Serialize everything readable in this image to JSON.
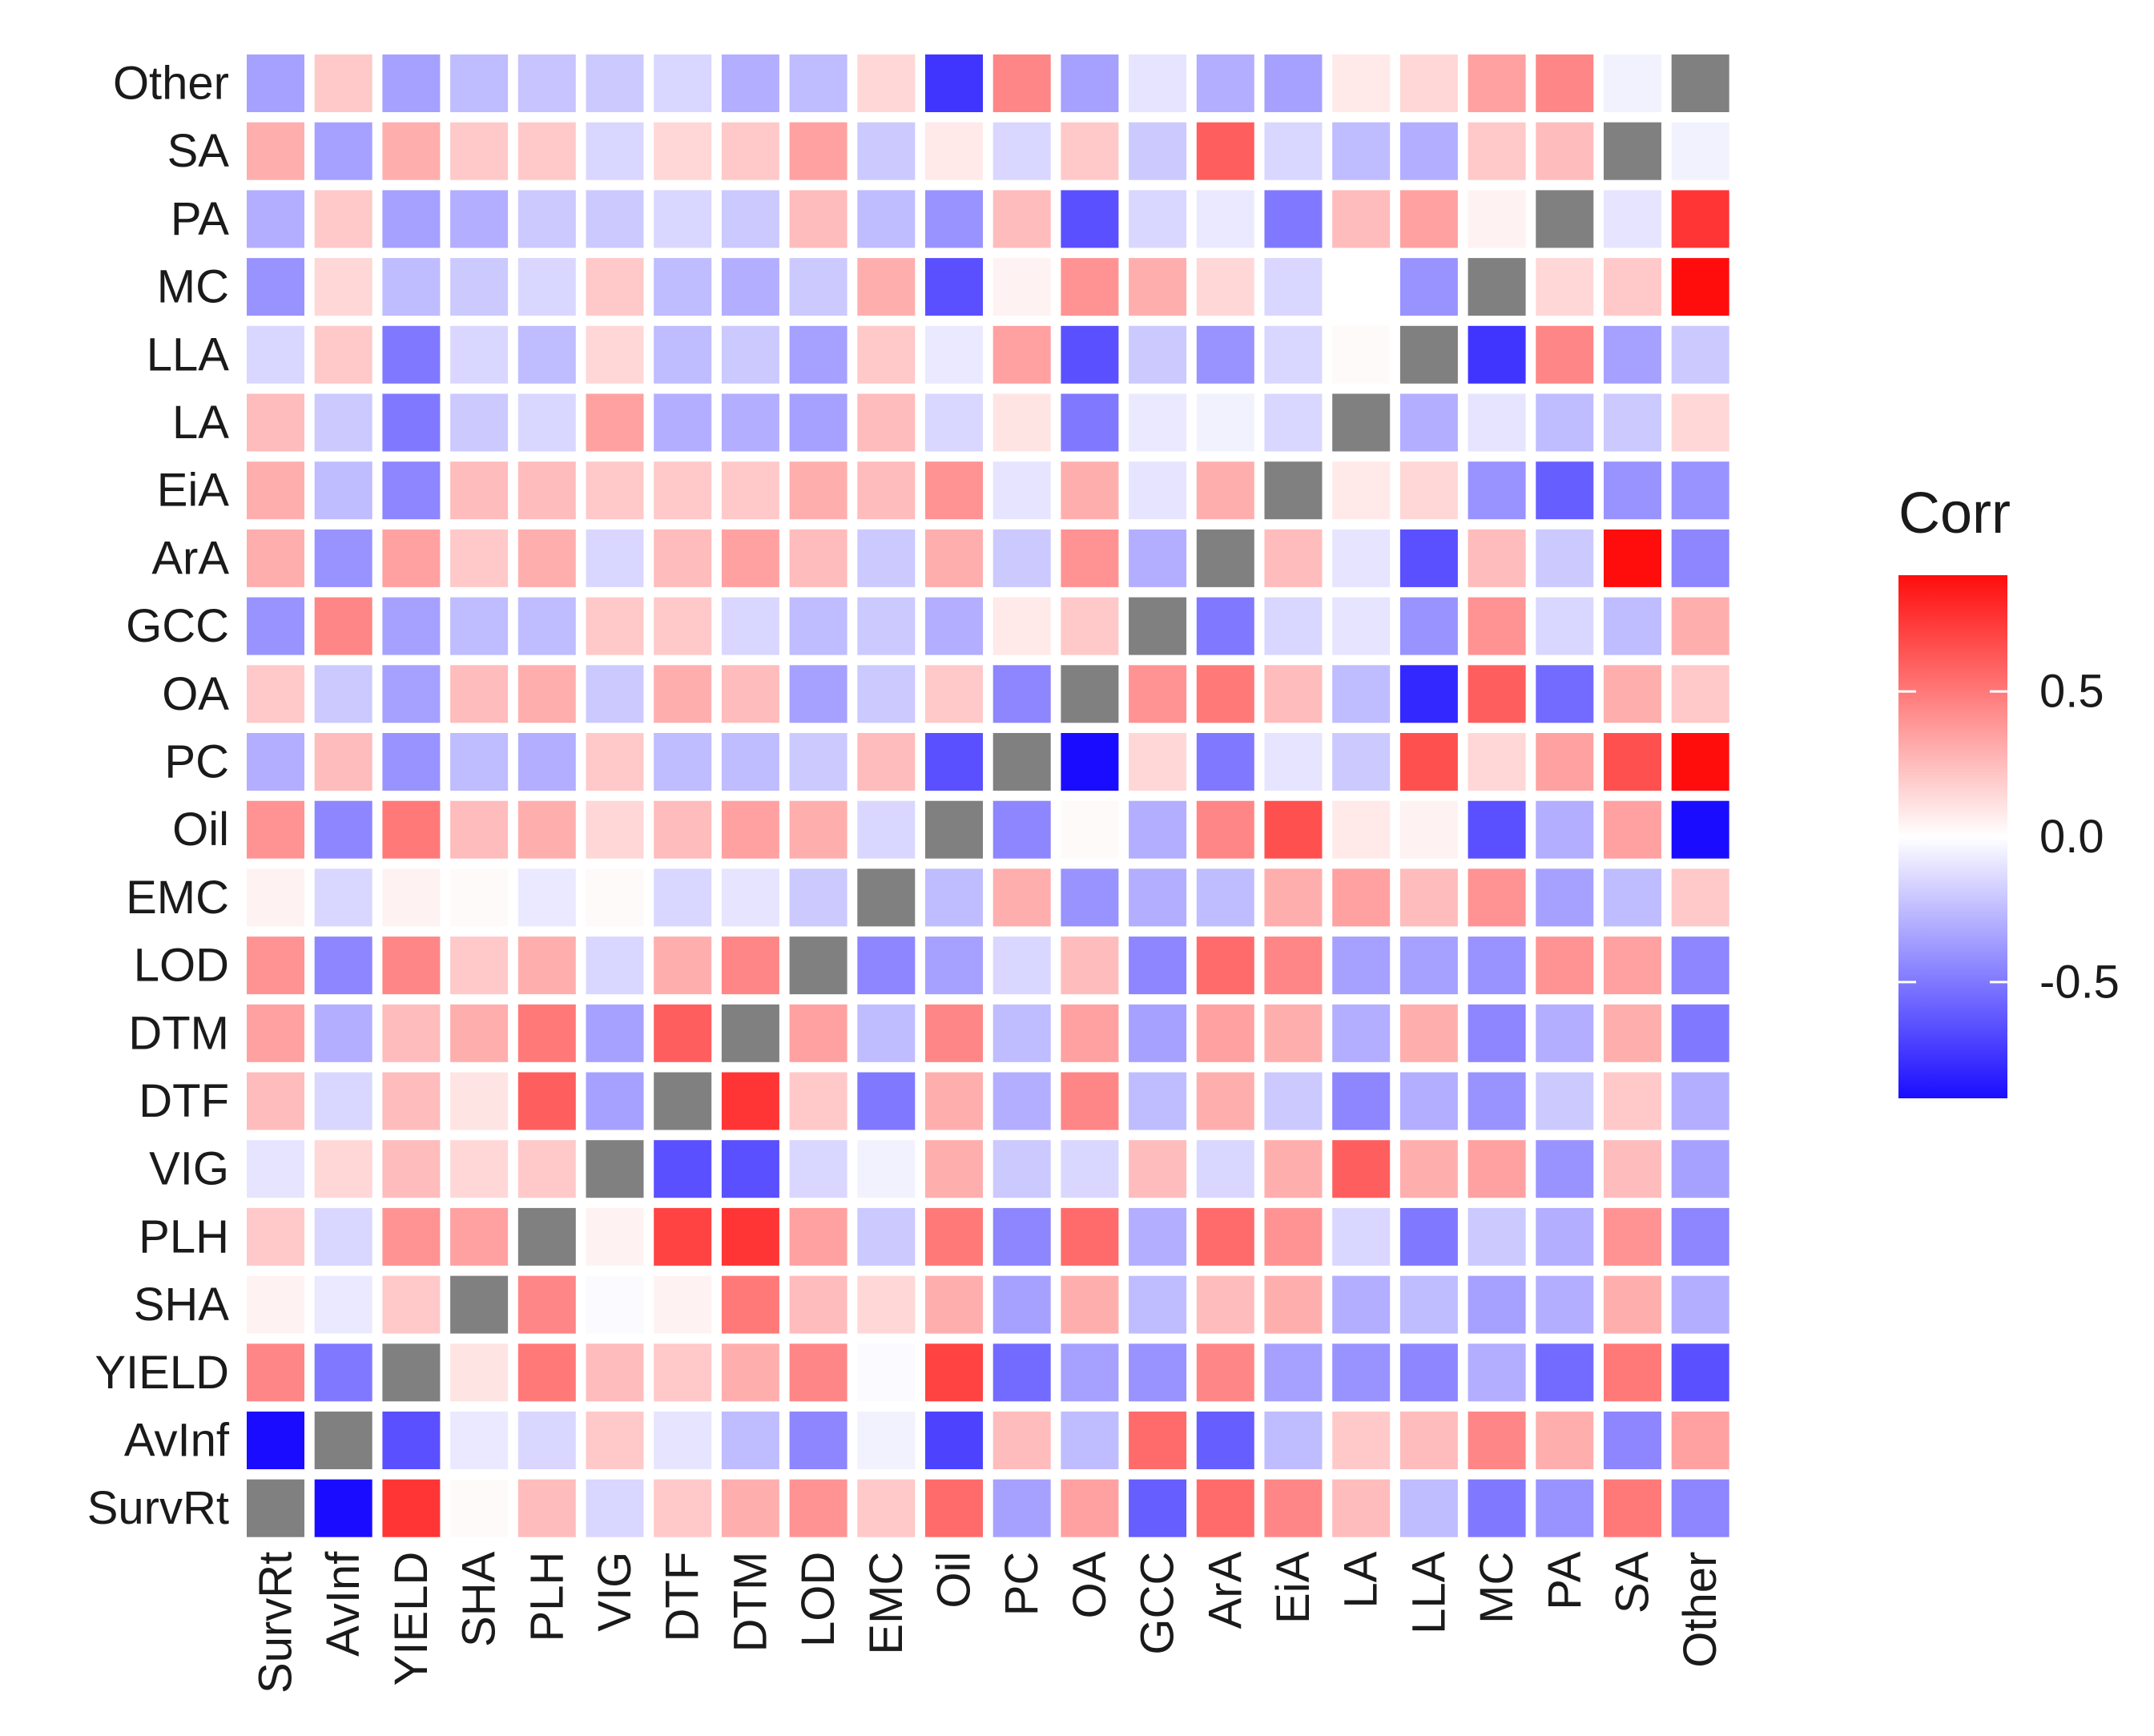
{
  "chart_data": {
    "type": "heatmap",
    "variables": [
      "SurvRt",
      "AvInf",
      "YIELD",
      "SHA",
      "PLH",
      "VIG",
      "DTF",
      "DTM",
      "LOD",
      "EMC",
      "Oil",
      "PC",
      "OA",
      "GCC",
      "ArA",
      "EiA",
      "LA",
      "LLA",
      "MC",
      "PA",
      "SA",
      "Other"
    ],
    "rows_top_to_bottom": [
      "Other",
      "SA",
      "PA",
      "MC",
      "LLA",
      "LA",
      "EiA",
      "ArA",
      "GCC",
      "OA",
      "PC",
      "Oil",
      "EMC",
      "LOD",
      "DTM",
      "DTF",
      "VIG",
      "PLH",
      "SHA",
      "YIELD",
      "AvInf",
      "SurvRt"
    ],
    "values": [
      [
        -0.35,
        0.2,
        -0.35,
        -0.25,
        -0.22,
        -0.2,
        -0.15,
        -0.3,
        -0.25,
        0.15,
        -0.75,
        0.45,
        -0.35,
        -0.1,
        -0.3,
        -0.35,
        0.08,
        0.15,
        0.35,
        0.45,
        -0.05,
        null
      ],
      [
        0.3,
        -0.35,
        0.3,
        0.2,
        0.2,
        -0.15,
        0.15,
        0.2,
        0.35,
        -0.2,
        0.08,
        -0.15,
        0.2,
        -0.2,
        0.6,
        -0.15,
        -0.25,
        -0.3,
        0.2,
        0.25,
        null,
        -0.05
      ],
      [
        -0.3,
        0.2,
        -0.35,
        -0.3,
        -0.2,
        -0.2,
        -0.15,
        -0.2,
        0.25,
        -0.25,
        -0.4,
        0.25,
        -0.65,
        -0.15,
        -0.08,
        -0.5,
        0.25,
        0.35,
        0.05,
        null,
        -0.1,
        0.75
      ],
      [
        -0.4,
        0.15,
        -0.25,
        -0.2,
        -0.15,
        0.2,
        -0.25,
        -0.3,
        -0.2,
        0.3,
        -0.65,
        0.05,
        0.4,
        0.3,
        0.15,
        -0.15,
        0.0,
        -0.4,
        null,
        0.15,
        0.2,
        0.95
      ],
      [
        -0.15,
        0.2,
        -0.5,
        -0.15,
        -0.25,
        0.15,
        -0.25,
        -0.2,
        -0.35,
        0.2,
        -0.08,
        0.35,
        -0.65,
        -0.2,
        -0.4,
        -0.15,
        0.02,
        null,
        -0.75,
        0.45,
        -0.35,
        -0.2
      ],
      [
        0.25,
        -0.2,
        -0.5,
        -0.2,
        -0.15,
        0.35,
        -0.3,
        -0.3,
        -0.35,
        0.25,
        -0.15,
        0.1,
        -0.5,
        -0.08,
        -0.05,
        -0.15,
        null,
        -0.3,
        -0.1,
        -0.25,
        -0.2,
        0.15
      ],
      [
        0.3,
        -0.25,
        -0.45,
        0.25,
        0.25,
        0.2,
        0.2,
        0.2,
        0.3,
        0.25,
        0.4,
        -0.1,
        0.3,
        -0.1,
        0.3,
        null,
        0.08,
        0.15,
        -0.4,
        -0.6,
        -0.4,
        -0.4
      ],
      [
        0.3,
        -0.4,
        0.35,
        0.2,
        0.3,
        -0.15,
        0.25,
        0.35,
        0.25,
        -0.2,
        0.3,
        -0.2,
        0.4,
        -0.3,
        null,
        0.25,
        -0.1,
        -0.65,
        0.25,
        -0.2,
        0.95,
        -0.45
      ],
      [
        -0.4,
        0.45,
        -0.35,
        -0.25,
        -0.25,
        0.2,
        0.2,
        -0.15,
        -0.25,
        -0.2,
        -0.3,
        0.08,
        0.2,
        null,
        -0.5,
        -0.15,
        -0.1,
        -0.4,
        0.4,
        -0.15,
        -0.25,
        0.3
      ],
      [
        0.2,
        -0.2,
        -0.35,
        0.25,
        0.3,
        -0.2,
        0.3,
        0.25,
        -0.35,
        -0.2,
        0.2,
        -0.45,
        null,
        0.4,
        0.5,
        0.25,
        -0.25,
        -0.8,
        0.6,
        -0.55,
        0.3,
        0.2
      ],
      [
        -0.3,
        0.25,
        -0.4,
        -0.25,
        -0.3,
        0.2,
        -0.25,
        -0.25,
        -0.2,
        0.25,
        -0.65,
        null,
        -0.9,
        0.15,
        -0.5,
        -0.1,
        -0.2,
        0.65,
        0.15,
        0.35,
        0.65,
        0.9
      ],
      [
        0.4,
        -0.45,
        0.5,
        0.25,
        0.3,
        0.15,
        0.25,
        0.35,
        0.3,
        -0.15,
        null,
        -0.45,
        0.02,
        -0.3,
        0.45,
        0.65,
        0.08,
        0.05,
        -0.65,
        -0.3,
        0.35,
        -0.9
      ],
      [
        0.05,
        -0.15,
        0.05,
        0.02,
        -0.08,
        0.02,
        -0.15,
        -0.1,
        -0.2,
        null,
        -0.25,
        0.3,
        -0.4,
        -0.3,
        -0.25,
        0.3,
        0.35,
        0.25,
        0.4,
        -0.35,
        -0.25,
        0.2
      ],
      [
        0.4,
        -0.45,
        0.45,
        0.2,
        0.3,
        -0.15,
        0.3,
        0.45,
        null,
        -0.45,
        -0.35,
        -0.15,
        0.25,
        -0.45,
        0.55,
        0.45,
        -0.35,
        -0.35,
        -0.4,
        0.4,
        0.35,
        -0.45
      ],
      [
        0.35,
        -0.3,
        0.25,
        0.3,
        0.5,
        -0.35,
        0.6,
        null,
        0.35,
        -0.25,
        0.45,
        -0.25,
        0.35,
        -0.35,
        0.35,
        0.3,
        -0.3,
        0.3,
        -0.45,
        -0.3,
        0.3,
        -0.5
      ],
      [
        0.25,
        -0.15,
        0.25,
        0.1,
        0.6,
        -0.35,
        null,
        0.75,
        0.2,
        -0.5,
        0.3,
        -0.3,
        0.45,
        -0.25,
        0.3,
        -0.2,
        -0.45,
        -0.3,
        -0.4,
        -0.2,
        0.2,
        -0.3
      ],
      [
        -0.1,
        0.15,
        0.25,
        0.15,
        0.2,
        null,
        -0.65,
        -0.65,
        -0.15,
        -0.05,
        0.3,
        -0.2,
        -0.15,
        0.25,
        -0.15,
        0.3,
        0.6,
        0.3,
        0.35,
        -0.4,
        0.25,
        -0.35
      ],
      [
        0.2,
        -0.15,
        0.4,
        0.35,
        null,
        0.05,
        0.7,
        0.75,
        0.35,
        -0.2,
        0.5,
        -0.45,
        0.55,
        -0.3,
        0.55,
        0.4,
        -0.15,
        -0.5,
        -0.2,
        -0.3,
        0.4,
        -0.45
      ],
      [
        0.05,
        -0.08,
        0.2,
        null,
        0.45,
        -0.02,
        0.05,
        0.5,
        0.25,
        0.15,
        0.3,
        -0.35,
        0.3,
        -0.25,
        0.25,
        0.3,
        -0.3,
        -0.25,
        -0.35,
        -0.3,
        0.3,
        -0.3
      ],
      [
        0.45,
        -0.5,
        null,
        0.1,
        0.5,
        0.25,
        0.2,
        0.3,
        0.45,
        -0.02,
        0.7,
        -0.55,
        -0.35,
        -0.4,
        0.45,
        -0.35,
        -0.4,
        -0.45,
        -0.3,
        -0.55,
        0.5,
        -0.65
      ],
      [
        -0.95,
        null,
        -0.65,
        -0.08,
        -0.15,
        0.2,
        -0.1,
        -0.25,
        -0.45,
        -0.05,
        -0.7,
        0.25,
        -0.25,
        0.55,
        -0.6,
        -0.25,
        0.2,
        0.25,
        0.45,
        0.3,
        -0.45,
        0.35
      ],
      [
        null,
        -0.9,
        0.75,
        0.02,
        0.25,
        -0.15,
        0.2,
        0.3,
        0.4,
        0.2,
        0.55,
        -0.35,
        0.35,
        -0.6,
        0.55,
        0.45,
        0.25,
        -0.25,
        -0.5,
        -0.4,
        0.5,
        -0.45
      ]
    ],
    "legend": {
      "title": "Corr",
      "ticks": [
        0.5,
        0.0,
        -0.5
      ],
      "tick_labels": [
        "0.5",
        "0.0",
        "-0.5"
      ],
      "range": [
        -0.9,
        0.9
      ],
      "low_color": "#1a0dff",
      "mid_color": "#ffffff",
      "high_color": "#ff0d0d",
      "na_color": "#808080",
      "position": "right"
    }
  }
}
